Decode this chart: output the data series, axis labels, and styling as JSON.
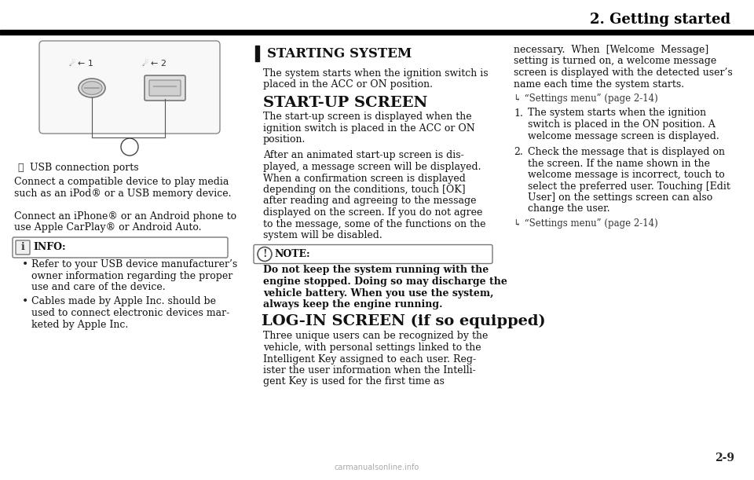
{
  "bg_color": "#ffffff",
  "header_title": "2. Getting started",
  "page_number": "2-9",
  "watermark": "carmanualsonline.info",
  "col2_heading": "STARTING SYSTEM",
  "col2_body1_lines": [
    "The system starts when the ignition switch is",
    "placed in the ACC or ON position."
  ],
  "col2_h2": "START-UP SCREEN",
  "col2_body2_lines": [
    "The start-up screen is displayed when the",
    "ignition switch is placed in the ACC or ON",
    "position."
  ],
  "col2_body3_lines": [
    "After an animated start-up screen is dis-",
    "played, a message screen will be displayed.",
    "When a confirmation screen is displayed",
    "depending on the conditions, touch [OK]",
    "after reading and agreeing to the message",
    "displayed on the screen. If you do not agree",
    "to the message, some of the functions on the",
    "system will be disabled."
  ],
  "col2_note_lines": [
    "Do not keep the system running with the",
    "engine stopped. Doing so may discharge the",
    "vehicle battery. When you use the system,",
    "always keep the engine running."
  ],
  "col2_h3": "LOG-IN SCREEN (if so equipped)",
  "col2_body4_lines": [
    "Three unique users can be recognized by the",
    "vehicle, with personal settings linked to the",
    "Intelligent Key assigned to each user. Reg-",
    "ister the user information when the Intelli-",
    "gent Key is used for the first time as"
  ],
  "col3_body1_lines": [
    "necessary.  When  [Welcome  Message]",
    "setting is turned on, a welcome message",
    "screen is displayed with the detected user’s",
    "name each time the system starts."
  ],
  "col3_ref1": "× “Settings menu” (page 2-14)",
  "col3_list1_lines": [
    "The system starts when the ignition",
    "switch is placed in the ON position. A",
    "welcome message screen is displayed."
  ],
  "col3_list2_lines": [
    "Check the message that is displayed on",
    "the screen. If the name shown in the",
    "welcome message is incorrect, touch to",
    "select the preferred user. Touching [Edit",
    "User] on the settings screen can also",
    "change the user."
  ],
  "col3_ref2": "× “Settings menu” (page 2-14)",
  "col1_caption": "USB connection ports",
  "col1_body_lines": [
    "Connect a compatible device to play media",
    "such as an iPod® or a USB memory device.",
    "",
    "Connect an iPhone® or an Android phone to",
    "use Apple CarPlay® or Android Auto."
  ],
  "info_bullet1": [
    "Refer to your USB device manufacturer’s",
    "owner information regarding the proper",
    "use and care of the device."
  ],
  "info_bullet2": [
    "Cables made by Apple Inc. should be",
    "used to connect electronic devices mar-",
    "keted by Apple Inc."
  ]
}
